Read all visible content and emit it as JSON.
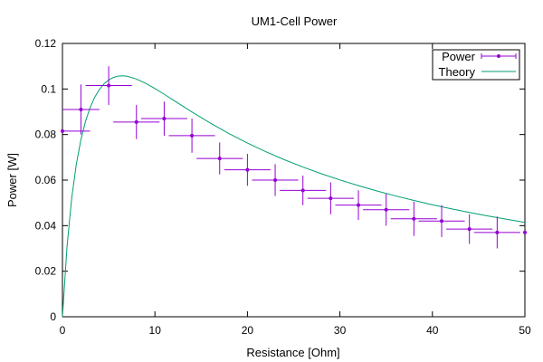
{
  "chart_data": {
    "type": "scatter",
    "title": "UM1-Cell Power",
    "xlabel": "Resistance [Ohm]",
    "ylabel": "Power [W]",
    "xlim": [
      0,
      50
    ],
    "ylim": [
      0,
      0.12
    ],
    "xticks": [
      0,
      10,
      20,
      30,
      40,
      50
    ],
    "yticks": [
      0,
      0.02,
      0.04,
      0.06,
      0.08,
      0.1,
      0.12
    ],
    "xtick_labels": [
      "0",
      "10",
      "20",
      "30",
      "40",
      "50"
    ],
    "ytick_labels": [
      "0",
      "0.02",
      "0.04",
      "0.06",
      "0.08",
      "0.1",
      "0.12"
    ],
    "grid": false,
    "legend_position": "top-right",
    "series": [
      {
        "name": "Power",
        "kind": "points-with-errorbars",
        "color": "#9400d3",
        "points": [
          {
            "x": 0,
            "y": 0.0815,
            "xerr": 3.0,
            "yerr": 0.0
          },
          {
            "x": 2,
            "y": 0.091,
            "xerr": 2.0,
            "yerr": 0.011
          },
          {
            "x": 5,
            "y": 0.1015,
            "xerr": 2.5,
            "yerr": 0.0085
          },
          {
            "x": 8,
            "y": 0.0855,
            "xerr": 2.5,
            "yerr": 0.0075
          },
          {
            "x": 11,
            "y": 0.087,
            "xerr": 2.5,
            "yerr": 0.0075
          },
          {
            "x": 14,
            "y": 0.0795,
            "xerr": 2.5,
            "yerr": 0.0075
          },
          {
            "x": 17,
            "y": 0.0695,
            "xerr": 2.5,
            "yerr": 0.007
          },
          {
            "x": 20,
            "y": 0.0645,
            "xerr": 2.5,
            "yerr": 0.007
          },
          {
            "x": 23,
            "y": 0.06,
            "xerr": 2.5,
            "yerr": 0.007
          },
          {
            "x": 26,
            "y": 0.0555,
            "xerr": 2.5,
            "yerr": 0.0065
          },
          {
            "x": 29,
            "y": 0.052,
            "xerr": 2.5,
            "yerr": 0.007
          },
          {
            "x": 32,
            "y": 0.049,
            "xerr": 2.5,
            "yerr": 0.0065
          },
          {
            "x": 35,
            "y": 0.047,
            "xerr": 2.5,
            "yerr": 0.007
          },
          {
            "x": 38,
            "y": 0.043,
            "xerr": 2.5,
            "yerr": 0.0075
          },
          {
            "x": 41,
            "y": 0.042,
            "xerr": 2.5,
            "yerr": 0.007
          },
          {
            "x": 44,
            "y": 0.0385,
            "xerr": 2.5,
            "yerr": 0.0065
          },
          {
            "x": 47,
            "y": 0.037,
            "xerr": 2.5,
            "yerr": 0.007
          },
          {
            "x": 50,
            "y": 0.037,
            "xerr": 0.0,
            "yerr": 0.0
          }
        ]
      },
      {
        "name": "Theory",
        "kind": "line",
        "color": "#009e73",
        "x": [
          0,
          0.5,
          1,
          1.5,
          2,
          2.5,
          3,
          3.5,
          4,
          4.5,
          5,
          5.5,
          6,
          6.5,
          7,
          8,
          9,
          10,
          11,
          12,
          14,
          16,
          18,
          20,
          22,
          24,
          26,
          28,
          30,
          32,
          34,
          36,
          38,
          40,
          42,
          44,
          46,
          48,
          50
        ],
        "y": [
          0,
          0.03102,
          0.05209,
          0.06698,
          0.07783,
          0.08589,
          0.09193,
          0.09647,
          0.09984,
          0.10229,
          0.10398,
          0.10506,
          0.10563,
          0.1058,
          0.10561,
          0.10439,
          0.10249,
          0.1002,
          0.0977,
          0.09509,
          0.08992,
          0.085,
          0.08045,
          0.07628,
          0.07245,
          0.06895,
          0.06574,
          0.06279,
          0.06007,
          0.05756,
          0.05523,
          0.05307,
          0.05106,
          0.04918,
          0.04743,
          0.04579,
          0.04425,
          0.0428,
          0.04144
        ]
      }
    ]
  }
}
